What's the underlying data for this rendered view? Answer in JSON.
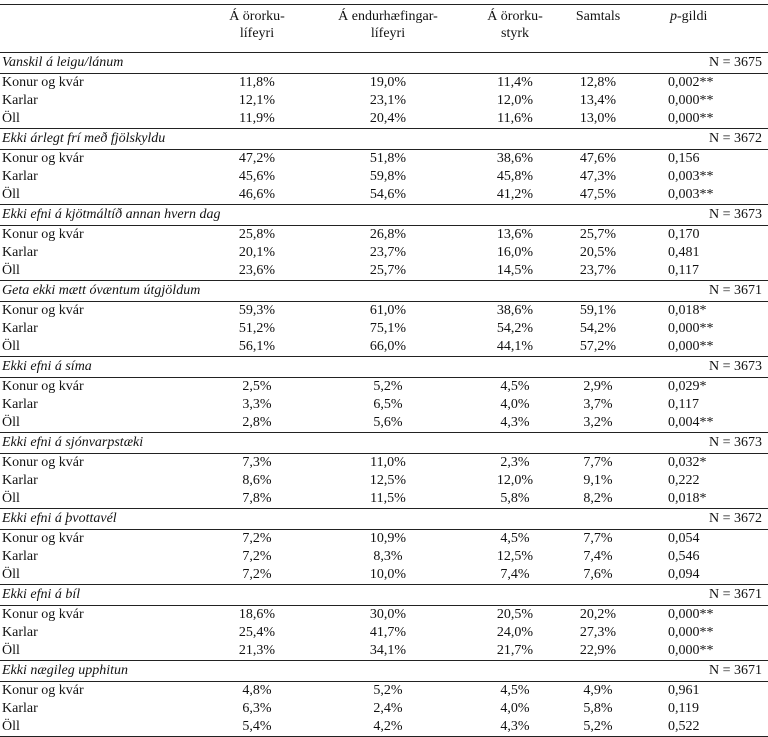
{
  "table": {
    "header": [
      [
        "Á örorku-",
        "lífeyri"
      ],
      [
        "Á endurhæfingar-",
        "lífeyri"
      ],
      [
        "Á örorku-",
        "styrk"
      ],
      [
        "Samtals"
      ],
      [
        "p",
        "-gildi"
      ]
    ],
    "sections": [
      {
        "title": "Vanskil á leigu/lánum",
        "n": "N = 3675",
        "rows": [
          [
            "Konur og kvár",
            "11,8%",
            "19,0%",
            "11,4%",
            "12,8%",
            "0,002**"
          ],
          [
            "Karlar",
            "12,1%",
            "23,1%",
            "12,0%",
            "13,4%",
            "0,000**"
          ],
          [
            "Öll",
            "11,9%",
            "20,4%",
            "11,6%",
            "13,0%",
            "0,000**"
          ]
        ]
      },
      {
        "title": "Ekki árlegt frí með fjölskyldu",
        "n": "N = 3672",
        "rows": [
          [
            "Konur og kvár",
            "47,2%",
            "51,8%",
            "38,6%",
            "47,6%",
            "0,156"
          ],
          [
            "Karlar",
            "45,6%",
            "59,8%",
            "45,8%",
            "47,3%",
            "0,003**"
          ],
          [
            "Öll",
            "46,6%",
            "54,6%",
            "41,2%",
            "47,5%",
            "0,003**"
          ]
        ]
      },
      {
        "title": "Ekki efni á kjötmáltíð annan hvern dag",
        "n": "N = 3673",
        "rows": [
          [
            "Konur og kvár",
            "25,8%",
            "26,8%",
            "13,6%",
            "25,7%",
            "0,170"
          ],
          [
            "Karlar",
            "20,1%",
            "23,7%",
            "16,0%",
            "20,5%",
            "0,481"
          ],
          [
            "Öll",
            "23,6%",
            "25,7%",
            "14,5%",
            "23,7%",
            "0,117"
          ]
        ]
      },
      {
        "title": "Geta ekki mætt óvæntum útgjöldum",
        "n": "N = 3671",
        "rows": [
          [
            "Konur og kvár",
            "59,3%",
            "61,0%",
            "38,6%",
            "59,1%",
            "0,018*"
          ],
          [
            "Karlar",
            "51,2%",
            "75,1%",
            "54,2%",
            "54,2%",
            "0,000**"
          ],
          [
            "Öll",
            "56,1%",
            "66,0%",
            "44,1%",
            "57,2%",
            "0,000**"
          ]
        ]
      },
      {
        "title": "Ekki efni á síma",
        "n": "N = 3673",
        "rows": [
          [
            "Konur og kvár",
            "2,5%",
            "5,2%",
            "4,5%",
            "2,9%",
            "0,029*"
          ],
          [
            "Karlar",
            "3,3%",
            "6,5%",
            "4,0%",
            "3,7%",
            "0,117"
          ],
          [
            "Öll",
            "2,8%",
            "5,6%",
            "4,3%",
            "3,2%",
            "0,004**"
          ]
        ]
      },
      {
        "title": "Ekki efni á sjónvarpstæki",
        "n": "N = 3673",
        "rows": [
          [
            "Konur og kvár",
            "7,3%",
            "11,0%",
            "2,3%",
            "7,7%",
            "0,032*"
          ],
          [
            "Karlar",
            "8,6%",
            "12,5%",
            "12,0%",
            "9,1%",
            "0,222"
          ],
          [
            "Öll",
            "7,8%",
            "11,5%",
            "5,8%",
            "8,2%",
            "0,018*"
          ]
        ]
      },
      {
        "title": "Ekki efni á þvottavél",
        "n": "N = 3672",
        "rows": [
          [
            "Konur og kvár",
            "7,2%",
            "10,9%",
            "4,5%",
            "7,7%",
            "0,054"
          ],
          [
            "Karlar",
            "7,2%",
            "8,3%",
            "12,5%",
            "7,4%",
            "0,546"
          ],
          [
            "Öll",
            "7,2%",
            "10,0%",
            "7,4%",
            "7,6%",
            "0,094"
          ]
        ]
      },
      {
        "title": "Ekki efni á bíl",
        "n": "N = 3671",
        "rows": [
          [
            "Konur og kvár",
            "18,6%",
            "30,0%",
            "20,5%",
            "20,2%",
            "0,000**"
          ],
          [
            "Karlar",
            "25,4%",
            "41,7%",
            "24,0%",
            "27,3%",
            "0,000**"
          ],
          [
            "Öll",
            "21,3%",
            "34,1%",
            "21,7%",
            "22,9%",
            "0,000**"
          ]
        ]
      },
      {
        "title": "Ekki nægileg upphitun",
        "n": "N = 3671",
        "rows": [
          [
            "Konur og kvár",
            "4,8%",
            "5,2%",
            "4,5%",
            "4,9%",
            "0,961"
          ],
          [
            "Karlar",
            "6,3%",
            "2,4%",
            "4,0%",
            "5,8%",
            "0,119"
          ],
          [
            "Öll",
            "5,4%",
            "4,2%",
            "4,3%",
            "5,2%",
            "0,522"
          ]
        ]
      }
    ]
  }
}
